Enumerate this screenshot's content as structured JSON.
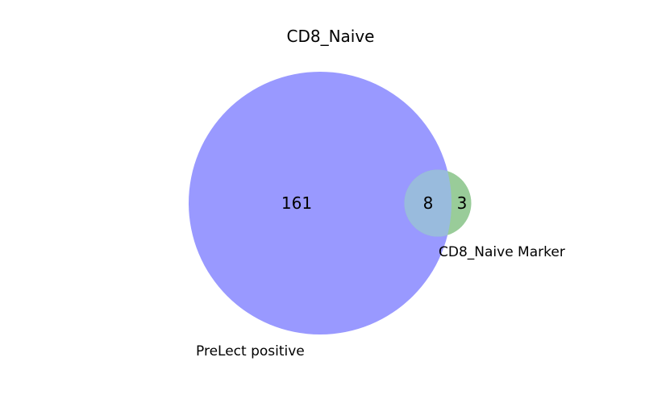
{
  "title": "CD8_Naive",
  "sets": [
    {
      "name": "PreLect positive",
      "color": "#9999ff",
      "only_count": "161"
    },
    {
      "name": "CD8_Naive Marker",
      "color": "#99cc99",
      "only_count": "3"
    }
  ],
  "intersection": {
    "count": "8",
    "color": "#99bbdd"
  }
}
